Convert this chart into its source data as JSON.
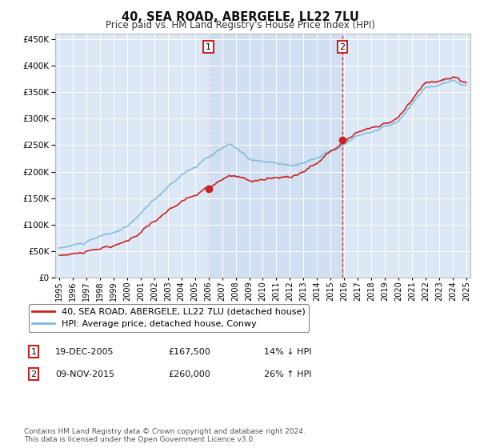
{
  "title": "40, SEA ROAD, ABERGELE, LL22 7LU",
  "subtitle": "Price paid vs. HM Land Registry's House Price Index (HPI)",
  "legend_line1": "40, SEA ROAD, ABERGELE, LL22 7LU (detached house)",
  "legend_line2": "HPI: Average price, detached house, Conwy",
  "annotation1_date": "19-DEC-2005",
  "annotation1_price": "£167,500",
  "annotation1_hpi": "14% ↓ HPI",
  "annotation1_year": 2006.0,
  "annotation1_value": 167500,
  "annotation2_date": "09-NOV-2015",
  "annotation2_price": "£260,000",
  "annotation2_hpi": "26% ↑ HPI",
  "annotation2_year": 2015.87,
  "annotation2_value": 260000,
  "hpi_color": "#7ab8d9",
  "price_color": "#cc2222",
  "vline_color": "#cc2222",
  "background_color": "#ffffff",
  "plot_bg_color": "#dce8f5",
  "shade_color": "#c8daf0",
  "ylim": [
    0,
    460000
  ],
  "yticks": [
    0,
    50000,
    100000,
    150000,
    200000,
    250000,
    300000,
    350000,
    400000,
    450000
  ],
  "footer": "Contains HM Land Registry data © Crown copyright and database right 2024.\nThis data is licensed under the Open Government Licence v3.0."
}
